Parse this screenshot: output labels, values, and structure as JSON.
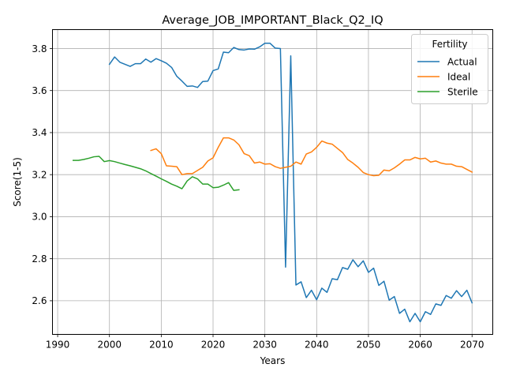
{
  "chart_data": {
    "type": "line",
    "title": "Average_JOB_IMPORTANT_Black_Q2_IQ",
    "xlabel": "Years",
    "ylabel": "Score(1-5)",
    "xlim": [
      1989,
      2074
    ],
    "ylim": [
      2.44,
      3.89
    ],
    "xticks": [
      1990,
      2000,
      2010,
      2020,
      2030,
      2040,
      2050,
      2060,
      2070
    ],
    "yticks": [
      2.6,
      2.8,
      3.0,
      3.2,
      3.4,
      3.6,
      3.8
    ],
    "grid": true,
    "legend": {
      "title": "Fertility",
      "placement": "upper right"
    },
    "series": [
      {
        "name": "Actual",
        "color": "#1f77b4",
        "x": [
          2000,
          2001,
          2002,
          2003,
          2004,
          2005,
          2006,
          2007,
          2008,
          2009,
          2010,
          2011,
          2012,
          2013,
          2014,
          2015,
          2016,
          2017,
          2018,
          2019,
          2020,
          2021,
          2022,
          2023,
          2024,
          2025,
          2026,
          2027,
          2028,
          2029,
          2030,
          2031,
          2032,
          2033,
          2034,
          2035,
          2036,
          2037,
          2038,
          2039,
          2040,
          2041,
          2042,
          2043,
          2044,
          2045,
          2046,
          2047,
          2048,
          2049,
          2050,
          2051,
          2052,
          2053,
          2054,
          2055,
          2056,
          2057,
          2058,
          2059,
          2060,
          2061,
          2062,
          2063,
          2064,
          2065,
          2066,
          2067,
          2068,
          2069,
          2070
        ],
        "y": [
          3.725,
          3.76,
          3.735,
          3.725,
          3.715,
          3.728,
          3.728,
          3.75,
          3.735,
          3.752,
          3.742,
          3.73,
          3.71,
          3.668,
          3.645,
          3.62,
          3.622,
          3.615,
          3.643,
          3.645,
          3.695,
          3.703,
          3.783,
          3.78,
          3.805,
          3.795,
          3.793,
          3.798,
          3.797,
          3.808,
          3.825,
          3.825,
          3.802,
          3.8,
          2.76,
          3.765,
          2.675,
          2.69,
          2.615,
          2.65,
          2.605,
          2.66,
          2.64,
          2.705,
          2.7,
          2.758,
          2.75,
          2.795,
          2.762,
          2.79,
          2.735,
          2.755,
          2.673,
          2.693,
          2.603,
          2.62,
          2.54,
          2.56,
          2.5,
          2.54,
          2.5,
          2.548,
          2.535,
          2.585,
          2.578,
          2.625,
          2.612,
          2.648,
          2.62,
          2.65,
          2.59
        ]
      },
      {
        "name": "Ideal",
        "color": "#ff7f0e",
        "x": [
          2008,
          2009,
          2010,
          2011,
          2012,
          2013,
          2014,
          2015,
          2016,
          2017,
          2018,
          2019,
          2020,
          2021,
          2022,
          2023,
          2024,
          2025,
          2026,
          2027,
          2028,
          2029,
          2030,
          2031,
          2032,
          2033,
          2034,
          2035,
          2036,
          2037,
          2038,
          2039,
          2040,
          2041,
          2042,
          2043,
          2044,
          2045,
          2046,
          2047,
          2048,
          2049,
          2050,
          2051,
          2052,
          2053,
          2054,
          2055,
          2056,
          2057,
          2058,
          2059,
          2060,
          2061,
          2062,
          2063,
          2064,
          2065,
          2066,
          2067,
          2068,
          2069,
          2070
        ],
        "y": [
          3.315,
          3.323,
          3.3,
          3.242,
          3.24,
          3.238,
          3.2,
          3.205,
          3.205,
          3.22,
          3.235,
          3.265,
          3.28,
          3.33,
          3.375,
          3.375,
          3.365,
          3.342,
          3.3,
          3.29,
          3.255,
          3.26,
          3.25,
          3.252,
          3.238,
          3.23,
          3.235,
          3.24,
          3.26,
          3.25,
          3.298,
          3.308,
          3.33,
          3.36,
          3.35,
          3.345,
          3.325,
          3.305,
          3.272,
          3.255,
          3.235,
          3.21,
          3.2,
          3.195,
          3.197,
          3.222,
          3.218,
          3.232,
          3.25,
          3.27,
          3.27,
          3.282,
          3.275,
          3.278,
          3.26,
          3.265,
          3.255,
          3.25,
          3.25,
          3.24,
          3.238,
          3.225,
          3.212
        ]
      },
      {
        "name": "Sterile",
        "color": "#2ca02c",
        "x": [
          1993,
          1994,
          1995,
          1996,
          1997,
          1998,
          1999,
          2000,
          2001,
          2002,
          2003,
          2004,
          2005,
          2006,
          2007,
          2008,
          2009,
          2010,
          2011,
          2012,
          2013,
          2014,
          2015,
          2016,
          2017,
          2018,
          2019,
          2020,
          2021,
          2022,
          2023,
          2024,
          2025
        ],
        "y": [
          3.268,
          3.268,
          3.272,
          3.278,
          3.285,
          3.287,
          3.262,
          3.267,
          3.262,
          3.255,
          3.248,
          3.242,
          3.235,
          3.228,
          3.218,
          3.205,
          3.193,
          3.18,
          3.168,
          3.155,
          3.145,
          3.133,
          3.17,
          3.19,
          3.18,
          3.155,
          3.155,
          3.138,
          3.14,
          3.15,
          3.162,
          3.125,
          3.128
        ]
      }
    ]
  }
}
